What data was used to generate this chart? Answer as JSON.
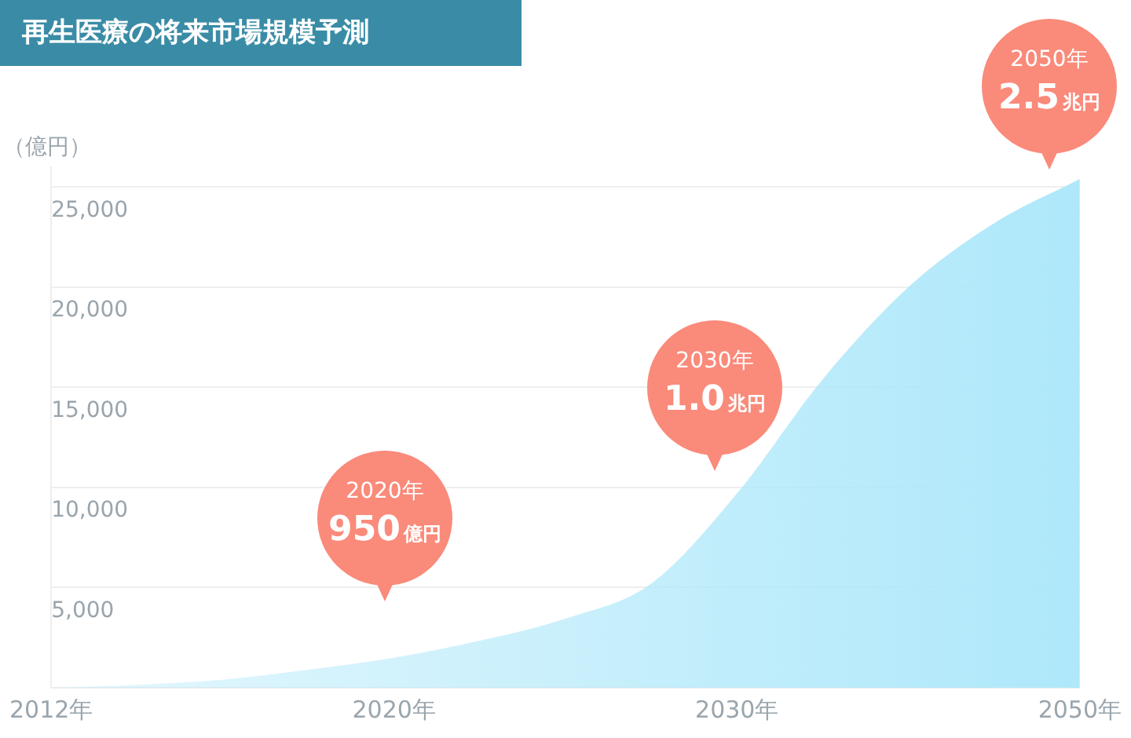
{
  "chart_data": {
    "type": "area",
    "title": "再生医療の将来市場規模予測",
    "ylabel": "（億円）",
    "categories": [
      "2012年",
      null,
      null,
      null,
      "2020年",
      null,
      null,
      null,
      "2030年",
      null,
      null,
      null,
      "2050年"
    ],
    "values": [
      0,
      150,
      400,
      900,
      1500,
      2350,
      3450,
      5200,
      9700,
      15400,
      20000,
      23200,
      25400
    ],
    "color": "#aee8fa",
    "ylim": [
      0,
      26000
    ],
    "yticks": [
      {
        "value": 5000,
        "label": "5,000"
      },
      {
        "value": 10000,
        "label": "10,000"
      },
      {
        "value": 15000,
        "label": "15,000"
      },
      {
        "value": 20000,
        "label": "20,000"
      },
      {
        "value": 25000,
        "label": "25,000"
      }
    ],
    "grid": "y",
    "legend": false,
    "annotations": [
      "2020年 950億円",
      "2030年 1.0兆円",
      "2050年 2.5兆円"
    ]
  }
}
